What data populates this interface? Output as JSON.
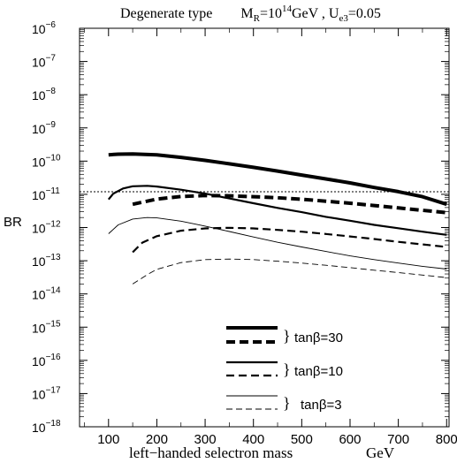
{
  "chart_data": {
    "type": "line",
    "title": {
      "prefix": "Degenerate type",
      "m_symbol": "M",
      "m_sub": "R",
      "m_eq": "=10",
      "m_exp": "14",
      "m_unit": "GeV , U",
      "u_sub": "e3",
      "u_eq": "=0.05"
    },
    "xlabel": "left−handed selectron mass",
    "xunit": "GeV",
    "ylabel": "BR",
    "xlim": [
      40,
      805
    ],
    "ylim_log10": [
      -18,
      -6
    ],
    "y_scale": "log",
    "xticks": [
      100,
      200,
      300,
      400,
      500,
      600,
      700,
      800
    ],
    "yticks": [
      {
        "base": "10",
        "exp": "−6",
        "pow": -6
      },
      {
        "base": "10",
        "exp": "−7",
        "pow": -7
      },
      {
        "base": "10",
        "exp": "−8",
        "pow": -8
      },
      {
        "base": "10",
        "exp": "−9",
        "pow": -9
      },
      {
        "base": "10",
        "exp": "−10",
        "pow": -10
      },
      {
        "base": "10",
        "exp": "−11",
        "pow": -11
      },
      {
        "base": "10",
        "exp": "−12",
        "pow": -12
      },
      {
        "base": "10",
        "exp": "−13",
        "pow": -13
      },
      {
        "base": "10",
        "exp": "−14",
        "pow": -14
      },
      {
        "base": "10",
        "exp": "−15",
        "pow": -15
      },
      {
        "base": "10",
        "exp": "−16",
        "pow": -16
      },
      {
        "base": "10",
        "exp": "−17",
        "pow": -17
      },
      {
        "base": "10",
        "exp": "−18",
        "pow": -18
      }
    ],
    "reference_line": {
      "y": 1.2e-11,
      "style": "dotted"
    },
    "series": [
      {
        "style": "thick-solid",
        "x": [
          100,
          120,
          150,
          200,
          250,
          300,
          350,
          400,
          450,
          500,
          550,
          600,
          650,
          700,
          750,
          800
        ],
        "y": [
          1.55e-10,
          1.62e-10,
          1.65e-10,
          1.55e-10,
          1.3e-10,
          1.05e-10,
          8.3e-11,
          6.5e-11,
          5e-11,
          3.8e-11,
          2.9e-11,
          2.2e-11,
          1.6e-11,
          1.2e-11,
          8.5e-12,
          5e-12
        ]
      },
      {
        "style": "thick-dashed",
        "x": [
          150,
          200,
          250,
          300,
          350,
          400,
          450,
          500,
          550,
          600,
          650,
          700,
          750,
          800
        ],
        "y": [
          5e-12,
          7.2e-12,
          8.6e-12,
          9.2e-12,
          9e-12,
          8.5e-12,
          7.9e-12,
          7.1e-12,
          6.2e-12,
          5.4e-12,
          4.6e-12,
          3.9e-12,
          3.3e-12,
          2.8e-12
        ]
      },
      {
        "style": "medium-solid",
        "x": [
          100,
          110,
          130,
          150,
          180,
          200,
          250,
          300,
          350,
          400,
          450,
          500,
          550,
          600,
          650,
          700,
          750,
          800
        ],
        "y": [
          7e-12,
          1.05e-11,
          1.5e-11,
          1.75e-11,
          1.8e-11,
          1.72e-11,
          1.38e-11,
          1.05e-11,
          7.5e-12,
          5.4e-12,
          3.9e-12,
          2.9e-12,
          2.1e-12,
          1.6e-12,
          1.2e-12,
          9.5e-13,
          7.5e-13,
          6e-13
        ]
      },
      {
        "style": "medium-dashed",
        "x": [
          150,
          170,
          200,
          250,
          300,
          350,
          400,
          450,
          500,
          550,
          600,
          650,
          700,
          750,
          800
        ],
        "y": [
          1.8e-13,
          3.5e-13,
          5.5e-13,
          8e-13,
          9.4e-13,
          9.8e-13,
          9.4e-13,
          8.5e-13,
          7.5e-13,
          6.4e-13,
          5.4e-13,
          4.5e-13,
          3.7e-13,
          3.1e-13,
          2.6e-13
        ]
      },
      {
        "style": "thin-solid",
        "x": [
          100,
          120,
          150,
          180,
          200,
          250,
          300,
          350,
          400,
          450,
          500,
          550,
          600,
          650,
          700,
          750,
          800
        ],
        "y": [
          6.5e-13,
          1.2e-12,
          1.8e-12,
          2e-12,
          1.95e-12,
          1.55e-12,
          1.1e-12,
          7.6e-13,
          5.2e-13,
          3.6e-13,
          2.6e-13,
          1.9e-13,
          1.4e-13,
          1.08e-13,
          8.5e-14,
          6.8e-14,
          5.6e-14
        ]
      },
      {
        "style": "thin-dashed",
        "x": [
          150,
          180,
          200,
          250,
          300,
          350,
          400,
          450,
          500,
          550,
          600,
          650,
          700,
          750,
          800
        ],
        "y": [
          2e-14,
          3.8e-14,
          5.5e-14,
          8.8e-14,
          1.08e-13,
          1.12e-13,
          1.08e-13,
          9.7e-14,
          8.5e-14,
          7.3e-14,
          6.2e-14,
          5.2e-14,
          4.4e-14,
          3.7e-14,
          3.1e-14
        ]
      }
    ],
    "legend": {
      "placement": "bottom-center",
      "brace": "}",
      "entries": [
        {
          "label": "tanβ=30",
          "styles": [
            "thick-solid",
            "thick-dashed"
          ]
        },
        {
          "label": "tanβ=10",
          "styles": [
            "medium-solid",
            "medium-dashed"
          ]
        },
        {
          "label": "tanβ=3",
          "styles": [
            "thin-solid",
            "thin-dashed"
          ]
        }
      ]
    }
  }
}
